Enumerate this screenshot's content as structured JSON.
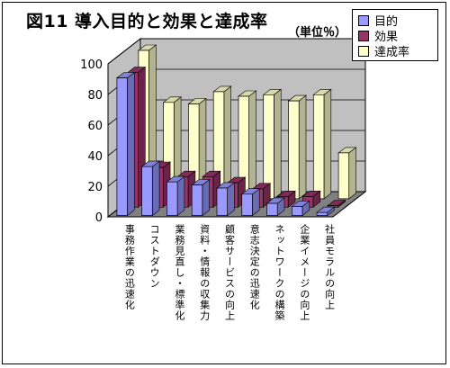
{
  "chart_title": "図11 導入目的と効果と達成率",
  "unit_label": "（単位％）",
  "colors": {
    "目的": "#9999ff",
    "効果": "#993366",
    "達成率": "#ffffcc",
    "wall": "#c0c0c0",
    "floor": "#808080"
  },
  "chart_data": {
    "type": "bar",
    "title": "図11 導入目的と効果と達成率",
    "ylabel": "（単位％）",
    "xlabel": "",
    "ylim": [
      0,
      100
    ],
    "yticks": [
      0,
      20,
      40,
      60,
      80,
      100
    ],
    "grid": true,
    "legend_position": "top-right",
    "categories": [
      "事務作業の迅速化",
      "コストダウン",
      "業務見直し・標準化",
      "資料・情報の収集力",
      "顧客サービスの向上",
      "意志決定の迅速化",
      "ネットワークの構築",
      "企業イメージの向上",
      "社員モラルの向上"
    ],
    "series": [
      {
        "name": "目的",
        "values": [
          90,
          32,
          22,
          20,
          18,
          14,
          8,
          6,
          2
        ]
      },
      {
        "name": "効果",
        "values": [
          88,
          26,
          20,
          20,
          16,
          12,
          7,
          7,
          1
        ]
      },
      {
        "name": "達成率",
        "values": [
          97,
          63,
          62,
          70,
          67,
          68,
          64,
          68,
          30
        ]
      }
    ]
  }
}
